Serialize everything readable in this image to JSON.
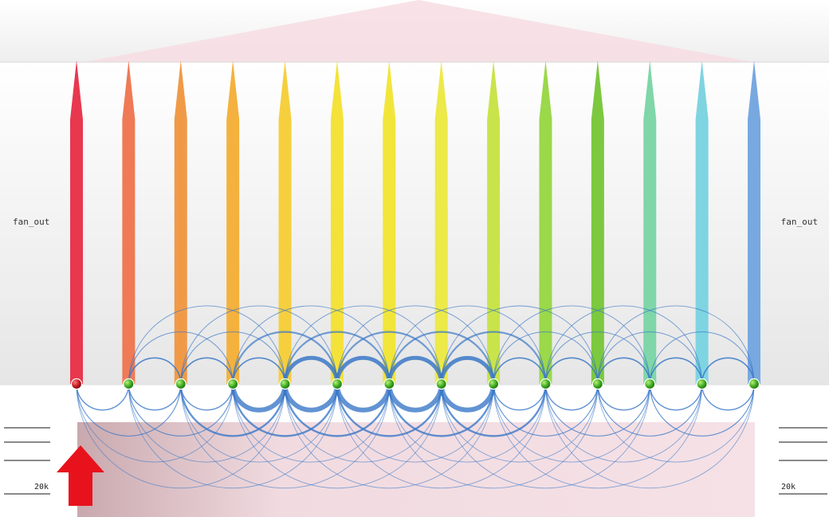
{
  "side_label_left": "fan_out",
  "side_label_right": "fan_out",
  "scale_left_label": "20k",
  "scale_right_label": "20k",
  "colors": {
    "background": "#ffffff",
    "band": "#efefef",
    "triangle": "#f7dde3",
    "arc": "#3b78c8",
    "node": "#3aa81e",
    "first_node": "#c0141b",
    "red_arrow": "#e8121d",
    "bottom_box": "#e9cfd6"
  },
  "bars": [
    {
      "color": "#e8384f"
    },
    {
      "color": "#ef7a55"
    },
    {
      "color": "#f09a48"
    },
    {
      "color": "#f4b13e"
    },
    {
      "color": "#f6cf3e"
    },
    {
      "color": "#f4e23a"
    },
    {
      "color": "#f2e53a"
    },
    {
      "color": "#ece949"
    },
    {
      "color": "#c9e44a"
    },
    {
      "color": "#9bd84a"
    },
    {
      "color": "#7cc83f"
    },
    {
      "color": "#7fd6a8"
    },
    {
      "color": "#7fd4e1"
    },
    {
      "color": "#78a8e0"
    }
  ]
}
